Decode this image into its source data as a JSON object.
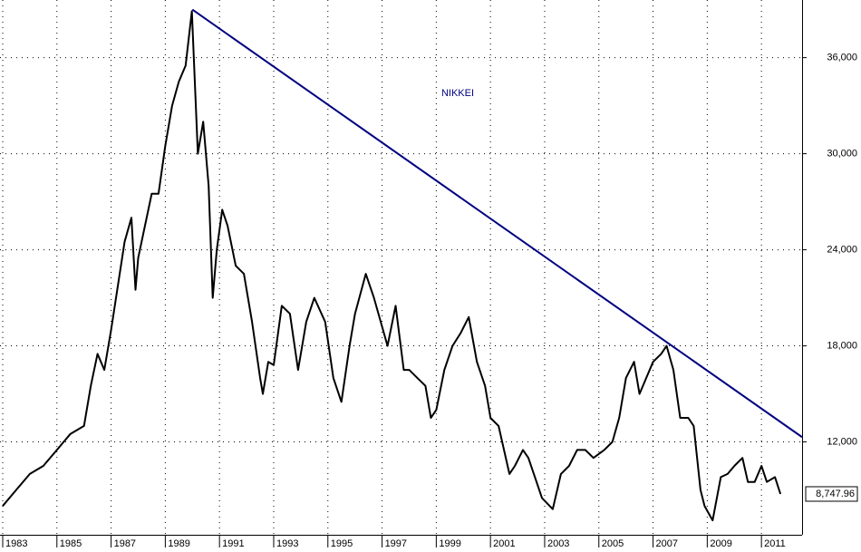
{
  "chart_data": {
    "type": "line",
    "title": "NIKKEI",
    "xlim": [
      1982.9,
      2012.5
    ],
    "xticks": [
      1983,
      1985,
      1987,
      1989,
      1991,
      1993,
      1995,
      1997,
      1999,
      2001,
      2003,
      2005,
      2007,
      2009,
      2011
    ],
    "ylim": [
      6200,
      39600
    ],
    "yticks": [
      {
        "value": 12000,
        "label": "12,000"
      },
      {
        "value": 18000,
        "label": "18,000"
      },
      {
        "value": 24000,
        "label": "24,000"
      },
      {
        "value": 30000,
        "label": "30,000"
      },
      {
        "value": 36000,
        "label": "36,000"
      }
    ],
    "grid": true,
    "series": [
      {
        "color": "#000000",
        "x": [
          1983.0,
          1983.5,
          1984.0,
          1984.5,
          1985.0,
          1985.5,
          1986.0,
          1986.25,
          1986.5,
          1986.75,
          1987.0,
          1987.5,
          1987.75,
          1987.9,
          1988.0,
          1988.5,
          1988.75,
          1989.0,
          1989.25,
          1989.5,
          1989.75,
          1989.98,
          1990.2,
          1990.4,
          1990.6,
          1990.75,
          1990.9,
          1991.1,
          1991.3,
          1991.6,
          1991.9,
          1992.2,
          1992.5,
          1992.6,
          1992.8,
          1993.0,
          1993.3,
          1993.6,
          1993.9,
          1994.2,
          1994.5,
          1994.9,
          1995.2,
          1995.5,
          1995.8,
          1996.0,
          1996.4,
          1996.7,
          1996.95,
          1997.2,
          1997.5,
          1997.8,
          1998.0,
          1998.3,
          1998.6,
          1998.8,
          1999.0,
          1999.3,
          1999.6,
          1999.9,
          2000.2,
          2000.5,
          2000.8,
          2001.0,
          2001.3,
          2001.7,
          2001.9,
          2002.2,
          2002.4,
          2002.7,
          2002.9,
          2003.3,
          2003.6,
          2003.9,
          2004.2,
          2004.5,
          2004.8,
          2005.2,
          2005.5,
          2005.75,
          2006.0,
          2006.3,
          2006.5,
          2006.75,
          2007.0,
          2007.3,
          2007.5,
          2007.75,
          2008.0,
          2008.3,
          2008.5,
          2008.75,
          2008.9,
          2009.2,
          2009.5,
          2009.75,
          2010.0,
          2010.3,
          2010.5,
          2010.75,
          2011.0,
          2011.2,
          2011.5,
          2011.7
        ],
        "values": [
          8000,
          9000,
          10000,
          10500,
          11500,
          12500,
          13000,
          15500,
          17500,
          16500,
          19000,
          24500,
          26000,
          21500,
          23500,
          27500,
          27500,
          30500,
          33000,
          34500,
          35500,
          38900,
          30000,
          32000,
          28000,
          21000,
          24000,
          26500,
          25500,
          23000,
          22500,
          19500,
          16000,
          15000,
          17000,
          16800,
          20500,
          20000,
          16500,
          19500,
          21000,
          19500,
          16000,
          14500,
          18000,
          20000,
          22500,
          21000,
          19500,
          18000,
          20500,
          16500,
          16500,
          16000,
          15500,
          13500,
          14000,
          16500,
          18000,
          18800,
          19800,
          17000,
          15500,
          13500,
          13000,
          10000,
          10500,
          11500,
          11000,
          9500,
          8500,
          7800,
          10000,
          10500,
          11500,
          11500,
          11000,
          11500,
          12000,
          13500,
          16000,
          17000,
          15000,
          16000,
          17000,
          17500,
          18000,
          16500,
          13500,
          13500,
          13000,
          9000,
          8000,
          7100,
          9800,
          10000,
          10500,
          11000,
          9500,
          9500,
          10500,
          9500,
          9800,
          8748
        ]
      }
    ],
    "trendline": {
      "color": "#000080",
      "x": [
        1990.0,
        2012.5
      ],
      "values": [
        39000,
        12300
      ]
    },
    "last_label": {
      "value": 8747.96,
      "label": "8,747.96"
    }
  }
}
